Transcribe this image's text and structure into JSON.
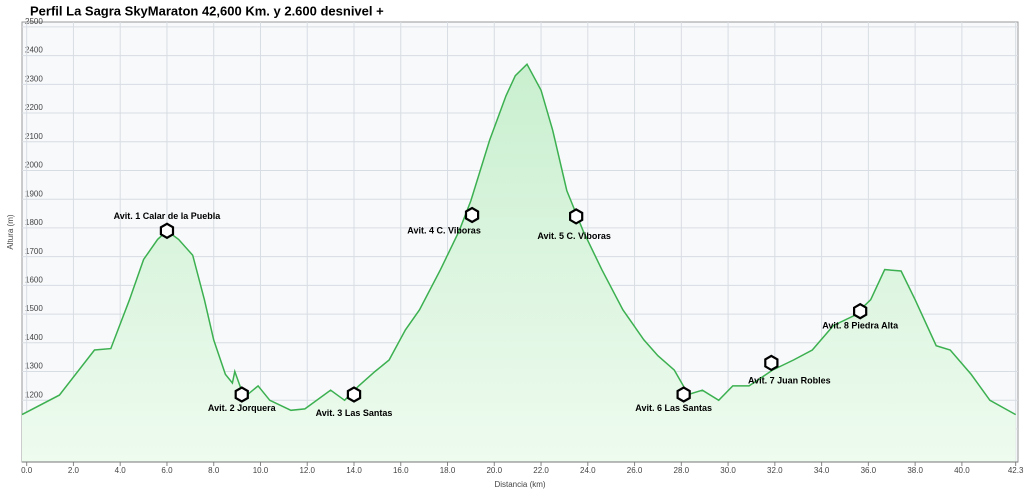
{
  "chart_data": {
    "type": "area",
    "title": "Perfil La Sagra SkyMaraton 42,600 Km. y 2.600 desnivel +",
    "x_label": "Distancia (km)",
    "y_label": "Altura (m)",
    "color": "#3cb050",
    "grid": true,
    "x": [
      -0.2,
      1.4,
      2.9,
      3.6,
      4.4,
      5.0,
      5.6,
      6.0,
      6.5,
      7.1,
      7.6,
      8.0,
      8.5,
      8.8,
      8.9,
      9.3,
      9.9,
      10.4,
      11.3,
      11.9,
      13.0,
      13.6,
      14.2,
      14.9,
      15.5,
      16.2,
      16.8,
      17.7,
      18.5,
      19.0,
      19.8,
      20.5,
      20.9,
      21.4,
      22.0,
      22.5,
      23.1,
      23.8,
      24.6,
      25.5,
      26.4,
      27.0,
      27.7,
      28.3,
      28.9,
      29.6,
      30.2,
      30.9,
      31.9,
      32.8,
      33.6,
      34.5,
      35.4,
      36.1,
      36.7,
      37.4,
      38.0,
      38.9,
      39.5,
      40.4,
      41.2,
      42.3
    ],
    "series": [
      {
        "name": "Altura",
        "color": "#3cb050",
        "values": [
          1150,
          1218,
          1375,
          1380,
          1550,
          1690,
          1760,
          1790,
          1760,
          1705,
          1550,
          1410,
          1290,
          1260,
          1300,
          1210,
          1250,
          1200,
          1165,
          1170,
          1235,
          1200,
          1250,
          1300,
          1340,
          1445,
          1515,
          1655,
          1790,
          1895,
          2105,
          2260,
          2330,
          2370,
          2280,
          2140,
          1930,
          1790,
          1655,
          1515,
          1410,
          1355,
          1305,
          1220,
          1235,
          1200,
          1250,
          1250,
          1305,
          1340,
          1375,
          1460,
          1495,
          1550,
          1655,
          1650,
          1550,
          1390,
          1375,
          1290,
          1200,
          1150
        ]
      }
    ],
    "xlim": [
      -0.2,
      42.4
    ],
    "ylim": [
      985,
      2517
    ],
    "xticks": [
      {
        "value": 0,
        "label": "0.0"
      },
      {
        "value": 2,
        "label": "2.0"
      },
      {
        "value": 4,
        "label": "4.0"
      },
      {
        "value": 6,
        "label": "6.0"
      },
      {
        "value": 8,
        "label": "8.0"
      },
      {
        "value": 10,
        "label": "10.0"
      },
      {
        "value": 12,
        "label": "12.0"
      },
      {
        "value": 14,
        "label": "14.0"
      },
      {
        "value": 16,
        "label": "16.0"
      },
      {
        "value": 18,
        "label": "18.0"
      },
      {
        "value": 20,
        "label": "20.0"
      },
      {
        "value": 22,
        "label": "22.0"
      },
      {
        "value": 24,
        "label": "24.0"
      },
      {
        "value": 26,
        "label": "26.0"
      },
      {
        "value": 28,
        "label": "28.0"
      },
      {
        "value": 30,
        "label": "30.0"
      },
      {
        "value": 32,
        "label": "32.0"
      },
      {
        "value": 34,
        "label": "34.0"
      },
      {
        "value": 36,
        "label": "36.0"
      },
      {
        "value": 38,
        "label": "38.0"
      },
      {
        "value": 40,
        "label": "40.0"
      },
      {
        "value": 42.3,
        "label": "42.3"
      }
    ],
    "yticks": [
      1100,
      1200,
      1300,
      1400,
      1500,
      1600,
      1700,
      1800,
      1900,
      2000,
      2100,
      2200,
      2300,
      2400,
      2500
    ],
    "annotations": [
      {
        "label": "Avit. 1 Calar de la Puebla",
        "x": 6.0,
        "y": 1790
      },
      {
        "label": "Avit. 2 Jorquera",
        "x": 9.2,
        "y": 1220
      },
      {
        "label": "Avit. 3 Las Santas",
        "x": 14.0,
        "y": 1220
      },
      {
        "label": "Avit. 4 C. Viboras",
        "x": 19.05,
        "y": 1845
      },
      {
        "label": "Avit. 5 C. Viboras",
        "x": 23.5,
        "y": 1840
      },
      {
        "label": "Avit. 6 Las Santas",
        "x": 28.1,
        "y": 1220
      },
      {
        "label": "Avit. 7 Juan Robles",
        "x": 31.85,
        "y": 1330
      },
      {
        "label": "Avit. 8 Piedra Alta",
        "x": 35.65,
        "y": 1510
      }
    ]
  }
}
